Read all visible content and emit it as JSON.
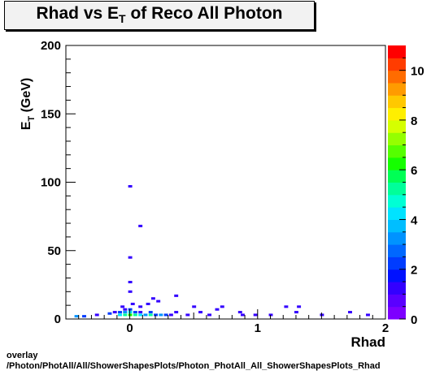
{
  "title": {
    "main": "Rhad vs E",
    "sub": "T",
    "rest": " of Reco All Photon"
  },
  "chart_data": {
    "type": "heatmap",
    "xlabel": "Rhad",
    "ylabel": "E",
    "ylabel_sub": "T",
    "ylabel_unit": " (GeV)",
    "xlim": [
      -0.5,
      2.0
    ],
    "ylim": [
      0,
      200
    ],
    "x_ticks": [
      0,
      1,
      2
    ],
    "y_ticks": [
      0,
      50,
      100,
      150,
      200
    ],
    "colorbar": {
      "zlim": [
        0,
        11
      ],
      "ticks": [
        0,
        2,
        4,
        6,
        8,
        10
      ]
    },
    "cells": [
      {
        "x": -0.42,
        "y": 2,
        "z": 3
      },
      {
        "x": -0.36,
        "y": 2,
        "z": 2
      },
      {
        "x": -0.26,
        "y": 3,
        "z": 1
      },
      {
        "x": -0.16,
        "y": 4,
        "z": 2
      },
      {
        "x": -0.12,
        "y": 5,
        "z": 1
      },
      {
        "x": -0.08,
        "y": 3,
        "z": 4
      },
      {
        "x": -0.08,
        "y": 5,
        "z": 2
      },
      {
        "x": -0.04,
        "y": 3,
        "z": 5
      },
      {
        "x": -0.04,
        "y": 5,
        "z": 3
      },
      {
        "x": -0.04,
        "y": 7,
        "z": 1
      },
      {
        "x": 0.0,
        "y": 3,
        "z": 6
      },
      {
        "x": 0.0,
        "y": 5,
        "z": 4
      },
      {
        "x": 0.0,
        "y": 7,
        "z": 2
      },
      {
        "x": 0.04,
        "y": 3,
        "z": 5
      },
      {
        "x": 0.04,
        "y": 5,
        "z": 2
      },
      {
        "x": 0.08,
        "y": 3,
        "z": 4
      },
      {
        "x": 0.08,
        "y": 5,
        "z": 1
      },
      {
        "x": 0.12,
        "y": 3,
        "z": 3
      },
      {
        "x": 0.16,
        "y": 3,
        "z": 5
      },
      {
        "x": 0.16,
        "y": 5,
        "z": 2
      },
      {
        "x": 0.2,
        "y": 3,
        "z": 2
      },
      {
        "x": 0.24,
        "y": 3,
        "z": 3
      },
      {
        "x": 0.28,
        "y": 3,
        "z": 2
      },
      {
        "x": 0.32,
        "y": 3,
        "z": 1
      },
      {
        "x": 0.36,
        "y": 5,
        "z": 1
      },
      {
        "x": 0.45,
        "y": 3,
        "z": 1
      },
      {
        "x": 0.55,
        "y": 5,
        "z": 1
      },
      {
        "x": 0.62,
        "y": 3,
        "z": 1
      },
      {
        "x": 0.68,
        "y": 7,
        "z": 1
      },
      {
        "x": 0.86,
        "y": 5,
        "z": 1
      },
      {
        "x": 0.88,
        "y": 3,
        "z": 1
      },
      {
        "x": 0.98,
        "y": 3,
        "z": 1
      },
      {
        "x": 1.1,
        "y": 3,
        "z": 1
      },
      {
        "x": 1.3,
        "y": 5,
        "z": 1
      },
      {
        "x": 1.5,
        "y": 3,
        "z": 1
      },
      {
        "x": 1.72,
        "y": 5,
        "z": 1
      },
      {
        "x": 1.86,
        "y": 3,
        "z": 1
      },
      {
        "x": -0.06,
        "y": 9,
        "z": 1
      },
      {
        "x": 0.02,
        "y": 11,
        "z": 1
      },
      {
        "x": 0.08,
        "y": 9,
        "z": 1
      },
      {
        "x": 0.14,
        "y": 11,
        "z": 1
      },
      {
        "x": 0.22,
        "y": 13,
        "z": 1
      },
      {
        "x": 0.36,
        "y": 17,
        "z": 1
      },
      {
        "x": 0.18,
        "y": 15,
        "z": 1
      },
      {
        "x": 0.0,
        "y": 20,
        "z": 1
      },
      {
        "x": 0.0,
        "y": 27,
        "z": 1
      },
      {
        "x": 0.0,
        "y": 45,
        "z": 1
      },
      {
        "x": 0.08,
        "y": 68,
        "z": 1
      },
      {
        "x": 0.0,
        "y": 97,
        "z": 1
      },
      {
        "x": 0.5,
        "y": 9,
        "z": 1
      },
      {
        "x": 0.72,
        "y": 9,
        "z": 1
      },
      {
        "x": 1.22,
        "y": 9,
        "z": 1
      },
      {
        "x": 1.32,
        "y": 9,
        "z": 1
      }
    ]
  },
  "footer": {
    "line1": "overlay",
    "line2": "/Photon/PhotAll/All/ShowerShapesPlots/Photon_PhotAll_All_ShowerShapesPlots_Rhad"
  }
}
